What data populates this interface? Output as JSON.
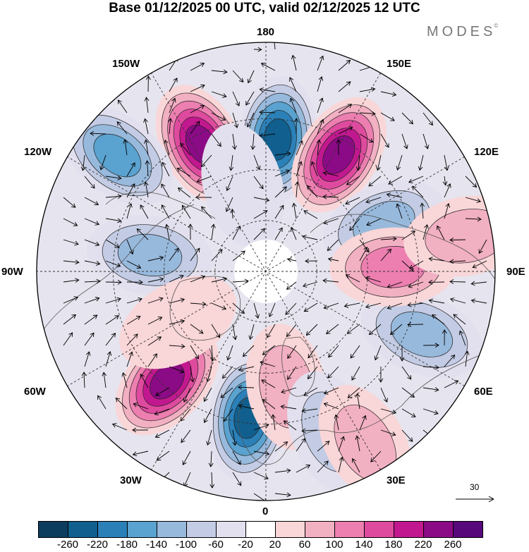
{
  "title": "Base 01/12/2025 00 UTC, valid 02/12/2025 12 UTC",
  "brand": "MODES",
  "brand_mark": "©",
  "longitude_labels": {
    "top": "180",
    "top_left": "150W",
    "top_right": "150E",
    "upper_left": "120W",
    "upper_right": "120E",
    "left": "90W",
    "right": "90E",
    "lower_left": "60W",
    "lower_right": "60E",
    "bottom_left": "30W",
    "bottom_right": "30E",
    "bottom": "0"
  },
  "reference_vector": "30",
  "colorbar": {
    "colors": [
      "#0d3d5e",
      "#105f8e",
      "#2b80b8",
      "#5aa2cf",
      "#97b9dc",
      "#c3cce4",
      "#e2e0ee",
      "#ffffff",
      "#f9d6d8",
      "#f2b0c3",
      "#ec7fb0",
      "#de4b9e",
      "#c2188f",
      "#8a0b85",
      "#57087a"
    ],
    "labels": [
      "-260",
      "-220",
      "-180",
      "-140",
      "-100",
      "-60",
      "-20",
      "20",
      "60",
      "100",
      "140",
      "180",
      "220",
      "260"
    ]
  },
  "anomalies": [
    {
      "lon": 175,
      "colat": 52,
      "value": -240
    },
    {
      "lon": 148,
      "colat": 54,
      "value": 240
    },
    {
      "lon": -153,
      "colat": 56,
      "value": 240
    },
    {
      "lon": -128,
      "colat": 74,
      "value": -140
    },
    {
      "lon": 112,
      "colat": 50,
      "value": -130
    },
    {
      "lon": -98,
      "colat": 46,
      "value": -110
    },
    {
      "lon": -42,
      "colat": 58,
      "value": 230
    },
    {
      "lon": -7,
      "colat": 58,
      "value": -220
    },
    {
      "lon": 10,
      "colat": 46,
      "value": 90
    },
    {
      "lon": 68,
      "colat": 66,
      "value": -120
    },
    {
      "lon": 22,
      "colat": 68,
      "value": -70
    },
    {
      "lon": 92,
      "colat": 50,
      "value": 110
    },
    {
      "lon": 100,
      "colat": 80,
      "value": 70
    },
    {
      "lon": 30,
      "colat": 78,
      "value": 60
    },
    {
      "lon": -60,
      "colat": 40,
      "value": 50
    },
    {
      "lon": -165,
      "colat": 35,
      "value": -20
    }
  ]
}
